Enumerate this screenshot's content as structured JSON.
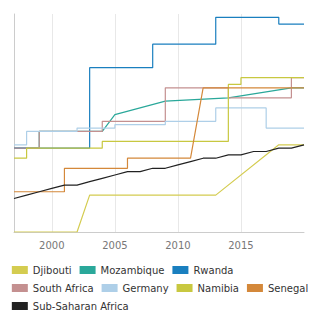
{
  "chart_data": {
    "type": "line",
    "xlim": [
      1997,
      2020
    ],
    "ylim": [
      0,
      65
    ],
    "xticks": [
      2000,
      2005,
      2010,
      2015
    ],
    "tick_labels": "x",
    "grid": "x",
    "legend": "bottom",
    "series": [
      {
        "name": "Djibouti",
        "color": "#d4cc50",
        "x": [
          1997,
          2002,
          2002,
          2003,
          2003,
          2013,
          2013,
          2018,
          2018,
          2020
        ],
        "values": [
          0,
          0,
          0,
          11,
          11,
          11,
          11,
          26,
          26,
          26
        ]
      },
      {
        "name": "Mozambique",
        "color": "#2aa89a",
        "x": [
          1997,
          1999,
          1999,
          2004,
          2004,
          2005,
          2005,
          2009,
          2009,
          2014,
          2014,
          2019,
          2019,
          2020
        ],
        "values": [
          25,
          25,
          30,
          30,
          30,
          35,
          35,
          39,
          39,
          40,
          40,
          43,
          43,
          43
        ]
      },
      {
        "name": "Rwanda",
        "color": "#1a7fbf",
        "x": [
          1997,
          2003,
          2003,
          2008,
          2008,
          2013,
          2013,
          2018,
          2018,
          2020
        ],
        "values": [
          25,
          25,
          49,
          49,
          56,
          56,
          64,
          64,
          62,
          62
        ]
      },
      {
        "name": "South Africa",
        "color": "#c49090",
        "x": [
          1997,
          1999,
          1999,
          2004,
          2004,
          2009,
          2009,
          2014,
          2014,
          2019,
          2019,
          2020
        ],
        "values": [
          25,
          25,
          30,
          30,
          33,
          33,
          43,
          43,
          40,
          40,
          46,
          46
        ]
      },
      {
        "name": "Germany",
        "color": "#aecfe8",
        "x": [
          1997,
          1998,
          1998,
          2002,
          2002,
          2005,
          2005,
          2009,
          2009,
          2013,
          2013,
          2017,
          2017,
          2020
        ],
        "values": [
          26,
          26,
          30,
          30,
          31,
          31,
          32,
          32,
          33,
          33,
          37,
          37,
          31,
          31
        ]
      },
      {
        "name": "Namibia",
        "color": "#c8c840",
        "x": [
          1997,
          1998,
          1998,
          2004,
          2004,
          2005,
          2005,
          2014,
          2014,
          2015,
          2015,
          2019,
          2019,
          2020
        ],
        "values": [
          22,
          22,
          25,
          25,
          27,
          27,
          27,
          27,
          44,
          44,
          46,
          46,
          46,
          46
        ]
      },
      {
        "name": "Senegal",
        "color": "#d4883a",
        "x": [
          1997,
          2001,
          2001,
          2006,
          2006,
          2011,
          2011,
          2012,
          2012,
          2020
        ],
        "values": [
          12,
          12,
          19,
          19,
          22,
          22,
          22,
          43,
          43,
          43
        ]
      },
      {
        "name": "Sub-Saharan Africa",
        "color": "#222222",
        "x": [
          1997,
          1998,
          1999,
          2000,
          2001,
          2002,
          2003,
          2004,
          2005,
          2006,
          2007,
          2008,
          2009,
          2010,
          2011,
          2012,
          2013,
          2014,
          2015,
          2016,
          2017,
          2018,
          2019,
          2020
        ],
        "values": [
          10,
          11,
          12,
          13,
          14,
          14,
          15,
          16,
          17,
          18,
          18,
          19,
          19,
          20,
          21,
          22,
          22,
          23,
          23,
          24,
          24,
          25,
          25,
          26
        ]
      }
    ]
  }
}
